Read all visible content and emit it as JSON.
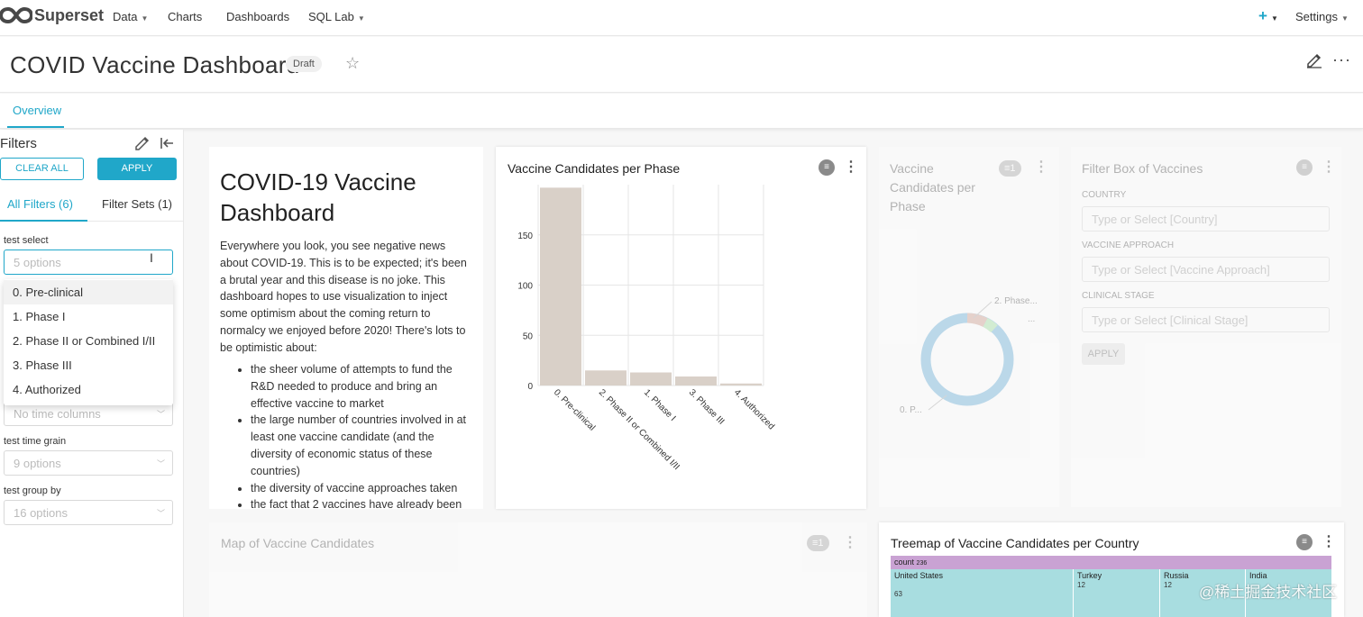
{
  "nav": {
    "brand": "Superset",
    "data": "Data",
    "charts": "Charts",
    "dashboards": "Dashboards",
    "sqllab": "SQL Lab",
    "plus": "+",
    "settings": "Settings"
  },
  "header": {
    "title": "COVID Vaccine Dashboard",
    "status": "Draft"
  },
  "tabs": {
    "overview": "Overview"
  },
  "filters_panel": {
    "title": "Filters",
    "clear_all": "CLEAR ALL",
    "apply": "APPLY",
    "tab_all": "All Filters (6)",
    "tab_sets": "Filter Sets (1)",
    "test_select_label": "test select",
    "test_select_placeholder": "5 options",
    "dropdown_options": [
      "0. Pre-clinical",
      "1. Phase I",
      "2. Phase II or Combined I/II",
      "3. Phase III",
      "4. Authorized"
    ],
    "time_columns_placeholder": "No time columns",
    "time_grain_label": "test time grain",
    "time_grain_placeholder": "9 options",
    "group_by_label": "test group by",
    "group_by_placeholder": "16 options"
  },
  "markdown": {
    "title": "COVID-19 Vaccine Dashboard",
    "paragraph": "Everywhere you look, you see negative news about COVID-19. This is to be expected; it's been a brutal year and this disease is no joke. This dashboard hopes to use visualization to inject some optimism about the coming return to normalcy we enjoyed before 2020! There's lots to be optimistic about:",
    "bullets": [
      "the sheer volume of attempts to fund the R&D needed to produce and bring an effective vaccine to market",
      "the large number of countries involved in at least one vaccine candidate (and the diversity of economic status of these countries)",
      "the diversity of vaccine approaches taken",
      "the fact that 2 vaccines have already been"
    ]
  },
  "bar_chart_card": {
    "title": "Vaccine Candidates per Phase"
  },
  "chart_data": {
    "type": "bar",
    "title": "Vaccine Candidates per Phase",
    "categories": [
      "0. Pre-clinical",
      "2. Phase II or Combined I/II",
      "1. Phase I",
      "3. Phase III",
      "4. Authorized"
    ],
    "values": [
      197,
      15,
      13,
      9,
      2
    ],
    "ylim": [
      0,
      200
    ],
    "yticks": [
      0,
      50,
      100,
      150
    ],
    "grid": true,
    "bar_color": "#d9d0c8"
  },
  "pie_card": {
    "title": "Vaccine Candidates per Phase",
    "badge": "1",
    "label_top": "2. Phase...",
    "label_right": "...",
    "label_bottom": "0. P..."
  },
  "filter_box": {
    "title": "Filter Box of Vaccines",
    "country_label": "COUNTRY",
    "country_placeholder": "Type or Select [Country]",
    "approach_label": "VACCINE APPROACH",
    "approach_placeholder": "Type or Select [Vaccine Approach]",
    "stage_label": "CLINICAL STAGE",
    "stage_placeholder": "Type or Select [Clinical Stage]",
    "apply": "APPLY"
  },
  "map_card": {
    "title": "Map of Vaccine Candidates",
    "badge": "1"
  },
  "treemap_card": {
    "title": "Treemap of Vaccine Candidates per Country",
    "root_label": "count",
    "root_value": "236",
    "tiles": [
      {
        "name": "United States",
        "value": "63"
      },
      {
        "name": "Turkey",
        "value": "12"
      },
      {
        "name": "Russia",
        "value": "12"
      },
      {
        "name": "India",
        "value": ""
      }
    ]
  },
  "watermark": "@稀土掘金技术社区",
  "colors": {
    "accent": "#20a7c9",
    "bar": "#d9d0c8",
    "treemap_root": "#c9a2d3",
    "treemap_tile": "#a8dde0"
  }
}
